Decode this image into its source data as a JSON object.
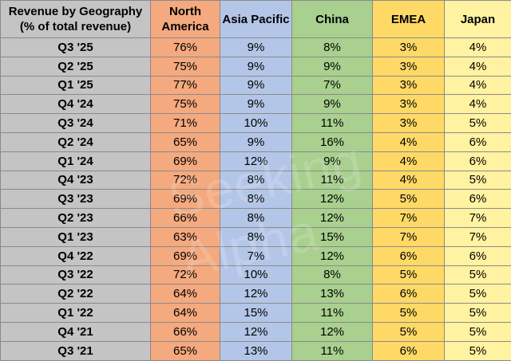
{
  "colors": {
    "quarter_col": "#c4c4c4",
    "north_america": "#f4a97e",
    "asia_pacific": "#b4c6e7",
    "china": "#a9d08e",
    "emea": "#ffd966",
    "japan": "#fff2a0"
  },
  "chart_data": {
    "type": "table",
    "title": "Revenue by Geography",
    "subtitle": "(% of total revenue)",
    "columns": [
      "North America",
      "Asia Pacific",
      "China",
      "EMEA",
      "Japan"
    ],
    "column_lines": [
      [
        "North",
        "America"
      ],
      [
        "Asia Pacific"
      ],
      [
        "China"
      ],
      [
        "EMEA"
      ],
      [
        "Japan"
      ]
    ],
    "rows": [
      {
        "quarter": "Q3 '25",
        "values": [
          "76%",
          "9%",
          "8%",
          "3%",
          "4%"
        ]
      },
      {
        "quarter": "Q2 '25",
        "values": [
          "75%",
          "9%",
          "9%",
          "3%",
          "4%"
        ]
      },
      {
        "quarter": "Q1 '25",
        "values": [
          "77%",
          "9%",
          "7%",
          "3%",
          "4%"
        ]
      },
      {
        "quarter": "Q4 '24",
        "values": [
          "75%",
          "9%",
          "9%",
          "3%",
          "4%"
        ]
      },
      {
        "quarter": "Q3 '24",
        "values": [
          "71%",
          "10%",
          "11%",
          "3%",
          "5%"
        ]
      },
      {
        "quarter": "Q2 '24",
        "values": [
          "65%",
          "9%",
          "16%",
          "4%",
          "6%"
        ]
      },
      {
        "quarter": "Q1 '24",
        "values": [
          "69%",
          "12%",
          "9%",
          "4%",
          "6%"
        ]
      },
      {
        "quarter": "Q4 '23",
        "values": [
          "72%",
          "8%",
          "11%",
          "4%",
          "5%"
        ]
      },
      {
        "quarter": "Q3 '23",
        "values": [
          "69%",
          "8%",
          "12%",
          "5%",
          "6%"
        ]
      },
      {
        "quarter": "Q2 '23",
        "values": [
          "66%",
          "8%",
          "12%",
          "7%",
          "7%"
        ]
      },
      {
        "quarter": "Q1 '23",
        "values": [
          "63%",
          "8%",
          "15%",
          "7%",
          "7%"
        ]
      },
      {
        "quarter": "Q4 '22",
        "values": [
          "69%",
          "7%",
          "12%",
          "6%",
          "6%"
        ]
      },
      {
        "quarter": "Q3 '22",
        "values": [
          "72%",
          "10%",
          "8%",
          "5%",
          "5%"
        ]
      },
      {
        "quarter": "Q2 '22",
        "values": [
          "64%",
          "12%",
          "13%",
          "6%",
          "5%"
        ]
      },
      {
        "quarter": "Q1 '22",
        "values": [
          "64%",
          "15%",
          "11%",
          "5%",
          "5%"
        ]
      },
      {
        "quarter": "Q4 '21",
        "values": [
          "66%",
          "12%",
          "12%",
          "5%",
          "5%"
        ]
      },
      {
        "quarter": "Q3 '21",
        "values": [
          "65%",
          "13%",
          "11%",
          "6%",
          "5%"
        ]
      }
    ]
  },
  "watermark": "Seeking Alpha"
}
